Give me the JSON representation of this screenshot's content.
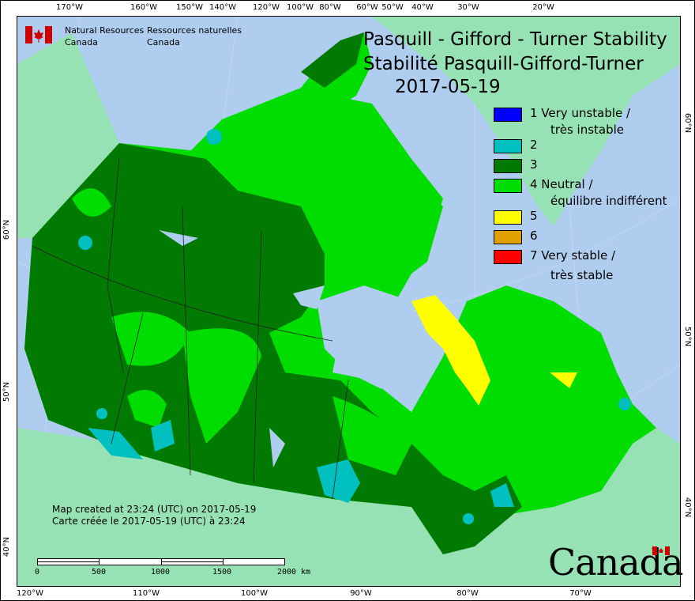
{
  "title": {
    "en": "Pasquill - Gifford - Turner Stability",
    "fr": "Stabilité Pasquill-Gifford-Turner",
    "date": "2017-05-19"
  },
  "agency": {
    "en_line1": "Natural Resources",
    "en_line2": "Canada",
    "fr_line1": "Ressources naturelles",
    "fr_line2": "Canada",
    "wordmark": "Canada"
  },
  "legend": [
    {
      "label": "1 Very unstable /",
      "sub": "très instable",
      "color": "#0000ff"
    },
    {
      "label": "2",
      "sub": "",
      "color": "#00c0c0"
    },
    {
      "label": "3",
      "sub": "",
      "color": "#007a00"
    },
    {
      "label": "4 Neutral /",
      "sub": "équilibre indifférent",
      "color": "#00dd00"
    },
    {
      "label": "5",
      "sub": "",
      "color": "#ffff00"
    },
    {
      "label": "6",
      "sub": "",
      "color": "#e0a000"
    },
    {
      "label": "7 Very stable /",
      "sub": "très stable",
      "color": "#ff0000"
    }
  ],
  "stamp": {
    "en": "Map created at 23:24 (UTC) on 2017-05-19",
    "fr": "Carte créée le 2017-05-19 (UTC) à 23:24"
  },
  "scale_bar": {
    "labels": [
      "0",
      "500",
      "1000",
      "1500",
      "2000 km"
    ]
  },
  "graticule": {
    "top": [
      "170°W",
      "160°W",
      "150°W",
      "140°W",
      "120°W",
      "100°W",
      "80°W",
      "60°W",
      "50°W",
      "40°W",
      "30°W",
      "20°W"
    ],
    "bottom": [
      "120°W",
      "110°W",
      "100°W",
      "90°W",
      "80°W",
      "70°W"
    ],
    "left": [
      "60°N",
      "50°N",
      "40°N"
    ],
    "right": [
      "60°N",
      "50°N",
      "40°N"
    ]
  },
  "colors": {
    "water": "#aecdef",
    "foreign_land": "#96e2b4"
  }
}
